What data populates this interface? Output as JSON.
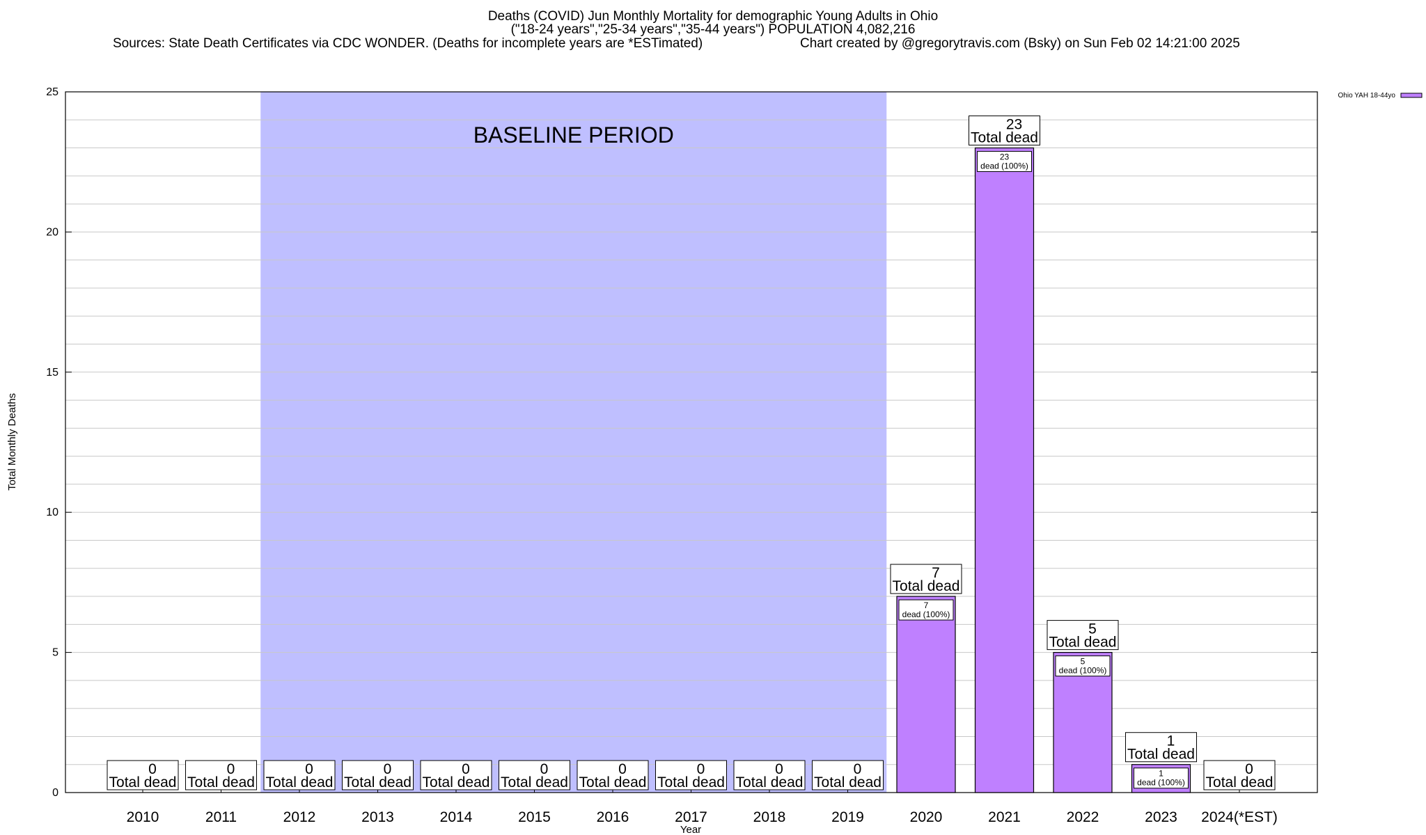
{
  "title_lines": [
    "Deaths (COVID) Jun Monthly Mortality for demographic Young Adults in Ohio",
    "(\"18-24 years\",\"25-34 years\",\"35-44 years\") POPULATION 4,082,216"
  ],
  "sources_text": "Sources: State Death Certificates via CDC WONDER. (Deaths for incomplete years are *ESTimated)",
  "credit_text": "Chart created by @gregorytravis.com (Bsky) on Sun Feb 02 14:21:00 2025",
  "chart_data": {
    "type": "bar",
    "categories": [
      "2010",
      "2011",
      "2012",
      "2013",
      "2014",
      "2015",
      "2016",
      "2017",
      "2018",
      "2019",
      "2020",
      "2021",
      "2022",
      "2023",
      "2024(*EST)"
    ],
    "values": [
      0,
      0,
      0,
      0,
      0,
      0,
      0,
      0,
      0,
      0,
      7,
      23,
      5,
      1,
      0
    ],
    "series": [
      {
        "name": "Ohio YAH 18-44yo",
        "values": [
          0,
          0,
          0,
          0,
          0,
          0,
          0,
          0,
          0,
          0,
          7,
          23,
          5,
          1,
          0
        ]
      }
    ],
    "xlabel": "Year",
    "ylabel": "Total Monthly Deaths",
    "ylim": [
      0,
      25
    ],
    "yticks": [
      0,
      5,
      10,
      15,
      20,
      25
    ],
    "grid": true,
    "legend_position": "top-right",
    "total_label_suffix": "Total dead",
    "inner_label_suffix": "dead (100%)",
    "baseline": {
      "label": "BASELINE PERIOD",
      "from": "2012",
      "to": "2019"
    },
    "colors": {
      "bar": "#bf80ff",
      "baseline": "#bfbfff",
      "grid": "#c8c8c8"
    }
  }
}
